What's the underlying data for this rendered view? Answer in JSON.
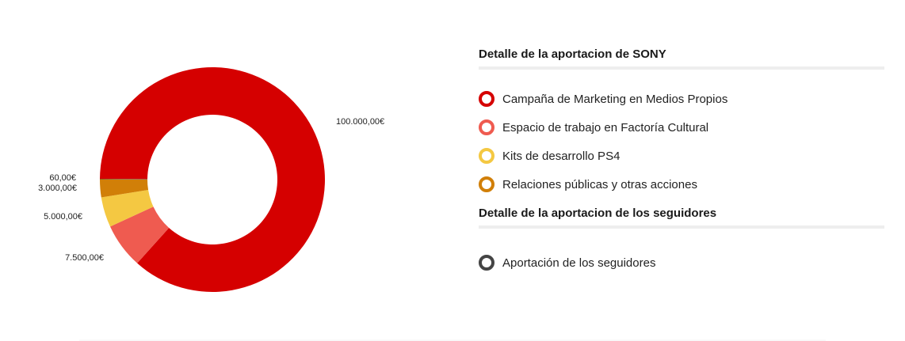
{
  "chart_data": {
    "type": "pie",
    "donut": true,
    "title": "",
    "slices": [
      {
        "label": "Campaña de Marketing en Medios Propios",
        "value": 100000.0,
        "value_label": "100.000,00€",
        "color": "#d50000"
      },
      {
        "label": "Espacio de trabajo en Factoría Cultural",
        "value": 7500.0,
        "value_label": "7.500,00€",
        "color": "#ef5b50"
      },
      {
        "label": "Kits de desarrollo PS4",
        "value": 5000.0,
        "value_label": "5.000,00€",
        "color": "#f4c842"
      },
      {
        "label": "Relaciones públicas y otras acciones",
        "value": 3000.0,
        "value_label": "3.000,00€",
        "color": "#d17f08"
      },
      {
        "label": "Aportación de los seguidores",
        "value": 60.0,
        "value_label": "60,00€",
        "color": "#444444"
      }
    ],
    "legend_position": "right"
  },
  "legend": {
    "sony_heading": "Detalle de la aportacion de SONY",
    "sony_items": [
      {
        "label": "Campaña de Marketing en Medios Propios",
        "color": "#d50000"
      },
      {
        "label": "Espacio de trabajo en Factoría Cultural",
        "color": "#ef5b50"
      },
      {
        "label": "Kits de desarrollo PS4",
        "color": "#f4c842"
      },
      {
        "label": "Relaciones públicas y otras acciones",
        "color": "#d17f08"
      }
    ],
    "followers_heading": "Detalle de la aportacion de los seguidores",
    "followers_items": [
      {
        "label": "Aportación de los seguidores",
        "color": "#444444"
      }
    ]
  }
}
